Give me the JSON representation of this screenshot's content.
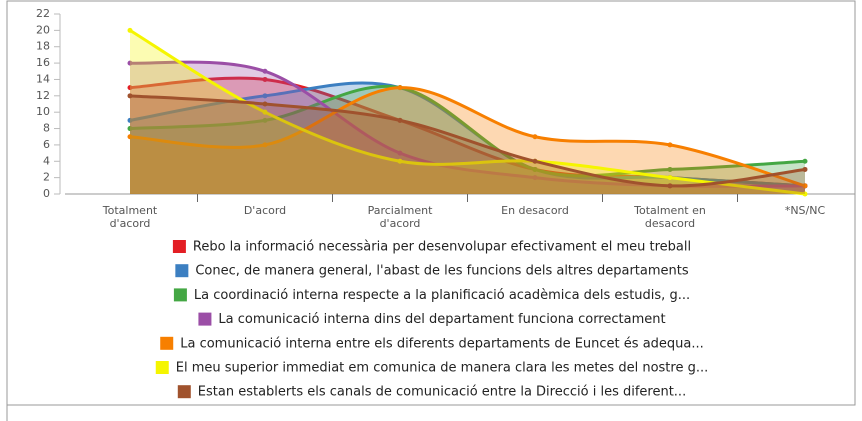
{
  "chart_data": {
    "type": "area",
    "categories": [
      "Totalment d'acord",
      "D'acord",
      "Parcialment d'acord",
      "En desacord",
      "Totalment en desacord",
      "*NS/NC"
    ],
    "ylim": [
      0,
      22
    ],
    "yticks": [
      0,
      2,
      4,
      6,
      8,
      10,
      12,
      14,
      16,
      18,
      20,
      22
    ],
    "series": [
      {
        "name": "Rebo la informació necessària per desenvolupar efectivament el meu treball",
        "color": "#e31e24",
        "values": [
          13,
          14,
          9,
          3,
          2,
          1
        ]
      },
      {
        "name": "Conec, de manera general, l'abast de les funcions dels altres departaments",
        "color": "#3c7fc1",
        "values": [
          9,
          12,
          13,
          3,
          2,
          1
        ]
      },
      {
        "name": "La coordinació interna respecte a la planificació acadèmica dels estudis, g...",
        "color": "#44a744",
        "values": [
          8,
          9,
          13,
          3,
          3,
          4
        ]
      },
      {
        "name": "La comunicació interna dins del departament funciona correctament",
        "color": "#9b4ea6",
        "values": [
          16,
          15,
          5,
          2,
          1,
          1
        ]
      },
      {
        "name": "La comunicació interna entre els diferents departaments de Euncet és adequa...",
        "color": "#f77f00",
        "values": [
          7,
          6,
          13,
          7,
          6,
          1
        ]
      },
      {
        "name": "El meu superior immediat em comunica de manera clara les metes del nostre g...",
        "color": "#f5f500",
        "values": [
          20,
          10,
          4,
          4,
          2,
          0
        ]
      },
      {
        "name": "Estan establerts els canals de comunicació entre la Direcció i les diferent...",
        "color": "#a0522d",
        "values": [
          12,
          11,
          9,
          4,
          1,
          3
        ]
      }
    ]
  }
}
